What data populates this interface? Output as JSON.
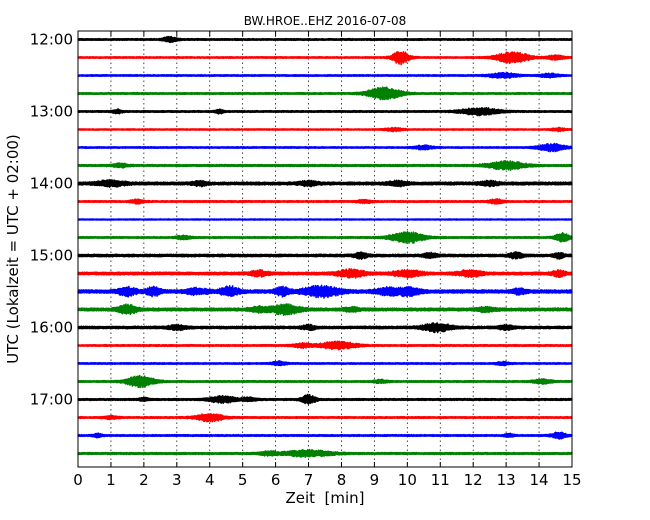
{
  "chart_data": {
    "type": "line",
    "title": "BW.HROE..EHZ 2016-07-08",
    "xlabel": "Zeit  [min]",
    "ylabel": "UTC (Lokalzeit = UTC + 02:00)",
    "xlim": [
      0,
      15
    ],
    "x_ticks": [
      "0",
      "1",
      "2",
      "3",
      "4",
      "5",
      "6",
      "7",
      "8",
      "9",
      "10",
      "11",
      "12",
      "13",
      "14",
      "15"
    ],
    "y_ticks": [
      "12:00",
      "13:00",
      "14:00",
      "15:00",
      "16:00",
      "17:00"
    ],
    "grid": true,
    "trace_colors": [
      "#000000",
      "#ff0000",
      "#0000ff",
      "#008000"
    ],
    "traces": [
      {
        "start": "12:00",
        "color": "#000000",
        "noise": 0.8,
        "bursts": [
          [
            2.8,
            0.15,
            2.5
          ]
        ]
      },
      {
        "start": "12:15",
        "color": "#ff0000",
        "noise": 0.7,
        "bursts": [
          [
            9.8,
            0.18,
            6.5
          ],
          [
            13.2,
            0.35,
            5.5
          ],
          [
            14.5,
            0.2,
            2
          ]
        ]
      },
      {
        "start": "12:30",
        "color": "#0000ff",
        "noise": 0.7,
        "bursts": [
          [
            12.9,
            0.3,
            2.5
          ],
          [
            14.3,
            0.2,
            1.8
          ]
        ]
      },
      {
        "start": "12:45",
        "color": "#008000",
        "noise": 0.8,
        "bursts": [
          [
            9.3,
            0.35,
            6
          ]
        ]
      },
      {
        "start": "13:00",
        "color": "#000000",
        "noise": 0.8,
        "bursts": [
          [
            12.2,
            0.4,
            3.5
          ],
          [
            1.2,
            0.1,
            1.8
          ],
          [
            4.3,
            0.1,
            1.8
          ]
        ]
      },
      {
        "start": "13:15",
        "color": "#ff0000",
        "noise": 0.6,
        "bursts": [
          [
            9.6,
            0.2,
            1.5
          ],
          [
            14.6,
            0.15,
            1.5
          ]
        ]
      },
      {
        "start": "13:30",
        "color": "#0000ff",
        "noise": 0.7,
        "bursts": [
          [
            14.4,
            0.3,
            3.5
          ],
          [
            10.5,
            0.2,
            1.8
          ]
        ]
      },
      {
        "start": "13:45",
        "color": "#008000",
        "noise": 0.9,
        "bursts": [
          [
            13,
            0.4,
            4
          ],
          [
            1.3,
            0.15,
            1.8
          ]
        ]
      },
      {
        "start": "14:00",
        "color": "#000000",
        "noise": 1.4,
        "bursts": [
          [
            1,
            0.3,
            2.5
          ],
          [
            7,
            0.2,
            2
          ],
          [
            3.7,
            0.15,
            1.8
          ],
          [
            9.7,
            0.2,
            2
          ],
          [
            12.5,
            0.2,
            1.8
          ]
        ]
      },
      {
        "start": "14:15",
        "color": "#ff0000",
        "noise": 0.8,
        "bursts": [
          [
            1.8,
            0.15,
            1.8
          ],
          [
            12.7,
            0.15,
            2
          ],
          [
            8.7,
            0.15,
            1.5
          ]
        ]
      },
      {
        "start": "14:30",
        "color": "#0000ff",
        "noise": 0.5,
        "bursts": []
      },
      {
        "start": "14:45",
        "color": "#008000",
        "noise": 0.8,
        "bursts": [
          [
            10,
            0.35,
            5.5
          ],
          [
            14.7,
            0.15,
            4
          ],
          [
            3.2,
            0.15,
            1.8
          ]
        ]
      },
      {
        "start": "15:00",
        "color": "#000000",
        "noise": 1.2,
        "bursts": [
          [
            8.6,
            0.15,
            2.5
          ],
          [
            10.7,
            0.15,
            2
          ],
          [
            13.3,
            0.15,
            2.5
          ],
          [
            14.6,
            0.1,
            2.5
          ]
        ]
      },
      {
        "start": "15:15",
        "color": "#ff0000",
        "noise": 1.3,
        "bursts": [
          [
            8.3,
            0.3,
            3.5
          ],
          [
            10,
            0.3,
            3
          ],
          [
            11.9,
            0.25,
            3
          ],
          [
            5.5,
            0.2,
            2.5
          ],
          [
            14.6,
            0.15,
            2.5
          ]
        ]
      },
      {
        "start": "15:30",
        "color": "#0000ff",
        "noise": 1.6,
        "bursts": [
          [
            1.5,
            0.2,
            4
          ],
          [
            2.3,
            0.15,
            4
          ],
          [
            3.6,
            0.25,
            2.5
          ],
          [
            4.6,
            0.2,
            4.5
          ],
          [
            6.2,
            0.15,
            4
          ],
          [
            7.4,
            0.4,
            5
          ],
          [
            9.5,
            0.3,
            3.5
          ],
          [
            10.1,
            0.2,
            3.5
          ],
          [
            13.4,
            0.15,
            2.2
          ]
        ]
      },
      {
        "start": "15:45",
        "color": "#008000",
        "noise": 1.4,
        "bursts": [
          [
            1.5,
            0.2,
            4.5
          ],
          [
            6.3,
            0.3,
            4.5
          ],
          [
            5.5,
            0.2,
            2.5
          ],
          [
            12.4,
            0.2,
            2
          ],
          [
            8.3,
            0.15,
            1.8
          ]
        ]
      },
      {
        "start": "16:00",
        "color": "#000000",
        "noise": 1.2,
        "bursts": [
          [
            10.9,
            0.3,
            4
          ],
          [
            3,
            0.2,
            2
          ],
          [
            7,
            0.15,
            2
          ],
          [
            13,
            0.15,
            2
          ]
        ]
      },
      {
        "start": "16:15",
        "color": "#ff0000",
        "noise": 0.8,
        "bursts": [
          [
            7.9,
            0.4,
            3.5
          ],
          [
            6.8,
            0.2,
            2
          ]
        ]
      },
      {
        "start": "16:30",
        "color": "#0000ff",
        "noise": 0.7,
        "bursts": [
          [
            6.1,
            0.15,
            2
          ],
          [
            12.9,
            0.15,
            1.5
          ]
        ]
      },
      {
        "start": "16:45",
        "color": "#008000",
        "noise": 0.8,
        "bursts": [
          [
            1.9,
            0.3,
            5.5
          ],
          [
            14.1,
            0.2,
            2
          ],
          [
            9.2,
            0.15,
            1.5
          ]
        ]
      },
      {
        "start": "17:00",
        "color": "#000000",
        "noise": 0.9,
        "bursts": [
          [
            4.4,
            0.3,
            3
          ],
          [
            7,
            0.15,
            4.5
          ],
          [
            5.2,
            0.15,
            1.8
          ],
          [
            2,
            0.1,
            1.5
          ]
        ]
      },
      {
        "start": "17:15",
        "color": "#ff0000",
        "noise": 0.8,
        "bursts": [
          [
            4,
            0.3,
            3.5
          ],
          [
            1,
            0.15,
            1.5
          ]
        ]
      },
      {
        "start": "17:30",
        "color": "#0000ff",
        "noise": 0.8,
        "bursts": [
          [
            14.6,
            0.15,
            3
          ],
          [
            13.1,
            0.1,
            1.5
          ],
          [
            0.6,
            0.1,
            1.5
          ]
        ]
      },
      {
        "start": "17:45",
        "color": "#008000",
        "noise": 0.9,
        "bursts": [
          [
            7,
            0.5,
            3
          ],
          [
            5.8,
            0.2,
            1.8
          ]
        ]
      }
    ]
  }
}
